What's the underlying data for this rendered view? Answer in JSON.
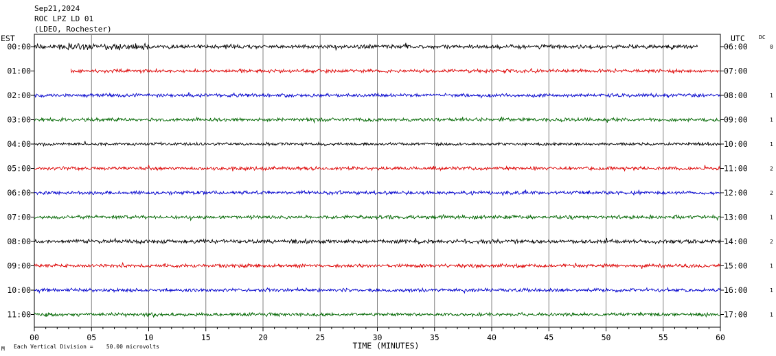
{
  "header": {
    "date": "Sep21,2024",
    "station": "ROC LPZ LD 01",
    "network": "(LDEO, Rochester)"
  },
  "left_axis_label": "EST",
  "right_axis_label": "UTC",
  "dc_label": "DC",
  "x_axis_label": "TIME (MINUTES)",
  "footnote": "Each Vertical Division =    50.00 microvolts",
  "corner_mark": "M",
  "colors": {
    "black": "#000000",
    "red": "#dd0000",
    "blue": "#0000cc",
    "green": "#006600",
    "grid": "#808080"
  },
  "chart_data": {
    "type": "line",
    "xlabel": "TIME (MINUTES)",
    "xlim": [
      0,
      60
    ],
    "x_ticks": [
      "00",
      "05",
      "10",
      "15",
      "20",
      "25",
      "30",
      "35",
      "40",
      "45",
      "50",
      "55",
      "60"
    ],
    "vertical_grid_every_minutes": 5,
    "series": [
      {
        "est": "00:00",
        "utc": "06:00",
        "dc": "0",
        "color": "#000000",
        "start_min": 0,
        "end_min": 58,
        "amplitude": 3.5
      },
      {
        "est": "01:00",
        "utc": "07:00",
        "dc": "",
        "color": "#dd0000",
        "start_min": 3.2,
        "end_min": 60,
        "amplitude": 3
      },
      {
        "est": "02:00",
        "utc": "08:00",
        "dc": "1",
        "color": "#0000cc",
        "start_min": 0,
        "end_min": 60,
        "amplitude": 3
      },
      {
        "est": "03:00",
        "utc": "09:00",
        "dc": "1",
        "color": "#006600",
        "start_min": 0,
        "end_min": 60,
        "amplitude": 3
      },
      {
        "est": "04:00",
        "utc": "10:00",
        "dc": "1",
        "color": "#000000",
        "start_min": 0,
        "end_min": 60,
        "amplitude": 2.5
      },
      {
        "est": "05:00",
        "utc": "11:00",
        "dc": "2",
        "color": "#dd0000",
        "start_min": 0,
        "end_min": 60,
        "amplitude": 3
      },
      {
        "est": "06:00",
        "utc": "12:00",
        "dc": "2",
        "color": "#0000cc",
        "start_min": 0,
        "end_min": 60,
        "amplitude": 3
      },
      {
        "est": "07:00",
        "utc": "13:00",
        "dc": "1",
        "color": "#006600",
        "start_min": 0,
        "end_min": 60,
        "amplitude": 3
      },
      {
        "est": "08:00",
        "utc": "14:00",
        "dc": "2",
        "color": "#000000",
        "start_min": 0,
        "end_min": 60,
        "amplitude": 3.5
      },
      {
        "est": "09:00",
        "utc": "15:00",
        "dc": "1",
        "color": "#dd0000",
        "start_min": 0,
        "end_min": 60,
        "amplitude": 3
      },
      {
        "est": "10:00",
        "utc": "16:00",
        "dc": "1",
        "color": "#0000cc",
        "start_min": 0,
        "end_min": 60,
        "amplitude": 3
      },
      {
        "est": "11:00",
        "utc": "17:00",
        "dc": "1",
        "color": "#006600",
        "start_min": 0,
        "end_min": 60,
        "amplitude": 3
      }
    ]
  }
}
